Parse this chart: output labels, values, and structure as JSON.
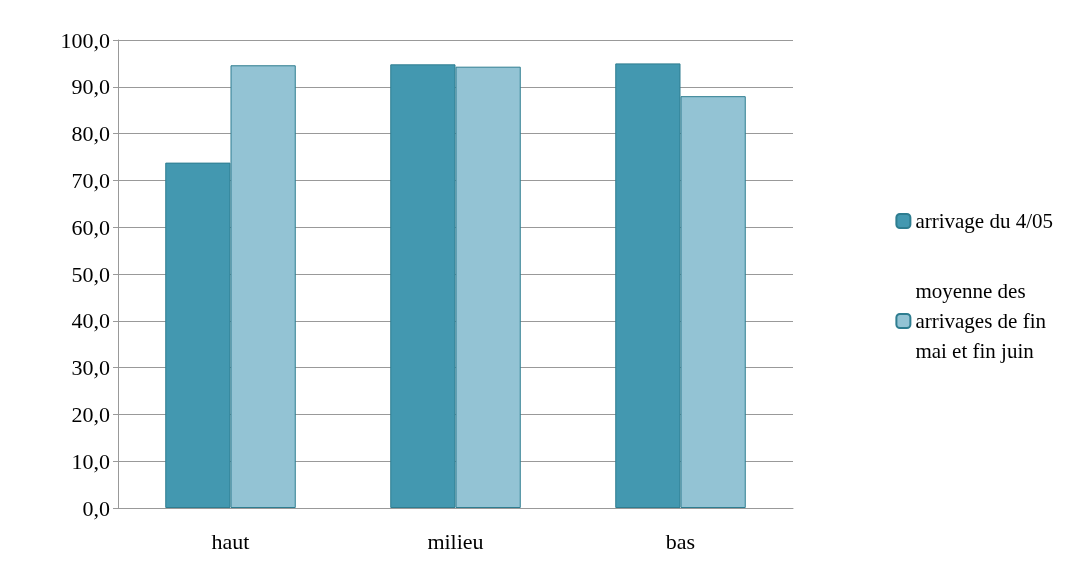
{
  "chart_data": {
    "type": "bar",
    "categories": [
      "haut",
      "milieu",
      "bas"
    ],
    "series": [
      {
        "name": "arrivage du 4/05",
        "color": "#4398b0",
        "values": [
          73.8,
          94.8,
          95.0
        ]
      },
      {
        "name": "moyenne des\narrivages de fin\nmai et fin juin",
        "color": "#93c3d4",
        "values": [
          94.6,
          94.3,
          88.0
        ]
      }
    ],
    "ylim": [
      0,
      100
    ],
    "yticks": [
      {
        "value": 0,
        "label": "0,0"
      },
      {
        "value": 10,
        "label": "10,0"
      },
      {
        "value": 20,
        "label": "20,0"
      },
      {
        "value": 30,
        "label": "30,0"
      },
      {
        "value": 40,
        "label": "40,0"
      },
      {
        "value": 50,
        "label": "50,0"
      },
      {
        "value": 60,
        "label": "60,0"
      },
      {
        "value": 70,
        "label": "70,0"
      },
      {
        "value": 80,
        "label": "80,0"
      },
      {
        "value": 90,
        "label": "90,0"
      },
      {
        "value": 100,
        "label": "100,0"
      }
    ],
    "grid": "y",
    "legend": "right"
  }
}
